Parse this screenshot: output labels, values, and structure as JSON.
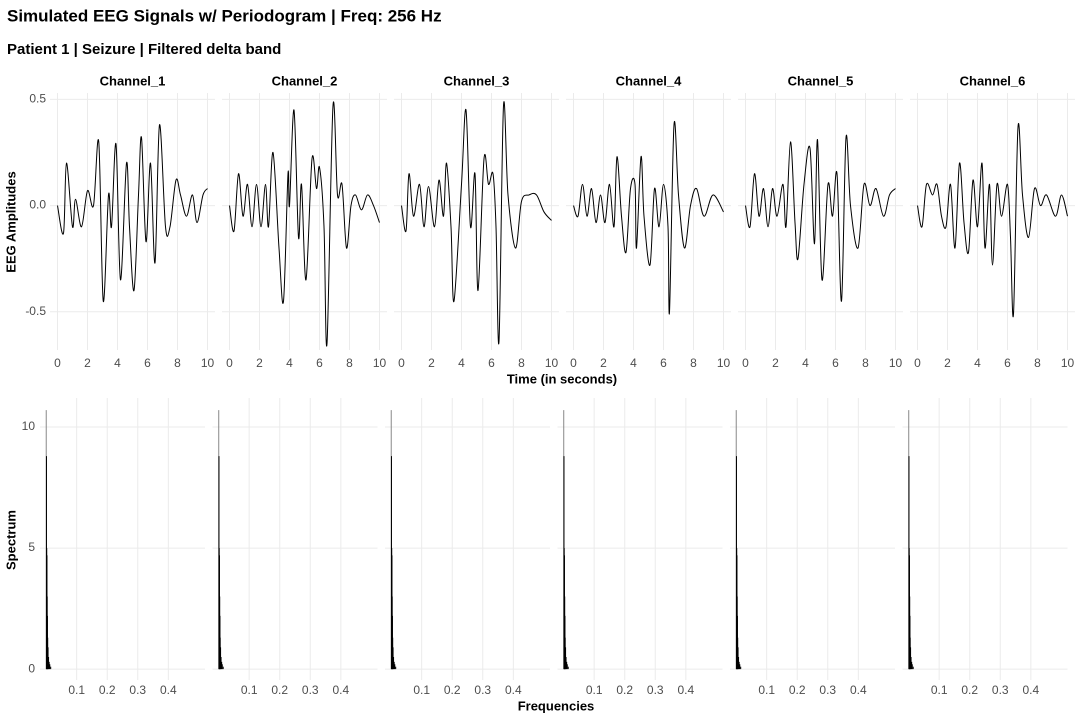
{
  "chart_data": [
    {
      "type": "line",
      "title": "Simulated EEG Signals w/ Periodogram | Freq: 256 Hz",
      "subtitle": "Patient 1 | Seizure | Filtered delta band",
      "x_label": "Time (in seconds)",
      "y_label": "EEG Amplitudes",
      "xlim": [
        -0.5,
        10.5
      ],
      "xticks": [
        0,
        2,
        4,
        6,
        8,
        10
      ],
      "ylim": [
        -0.68,
        0.53
      ],
      "yticks": [
        -0.5,
        {
          "value": 0,
          "label": "0.0"
        },
        0.5
      ],
      "grid": true,
      "color": "#000000",
      "panels": [
        {
          "name": "Channel_1",
          "x": [
            0,
            0.4,
            0.6,
            1.0,
            1.2,
            1.6,
            2.0,
            2.4,
            2.75,
            3.05,
            3.4,
            3.6,
            3.9,
            4.2,
            4.6,
            4.8,
            5.1,
            5.4,
            5.6,
            5.9,
            6.2,
            6.5,
            6.8,
            7.2,
            7.5,
            7.9,
            8.2,
            8.6,
            9.0,
            9.3,
            9.7,
            10
          ],
          "values": [
            0,
            -0.13,
            0.2,
            -0.1,
            0.03,
            -0.1,
            0.07,
            0,
            0.3,
            -0.45,
            0.05,
            -0.1,
            0.29,
            -0.35,
            0.2,
            -0.1,
            -0.4,
            0.05,
            0.32,
            -0.17,
            0.2,
            -0.27,
            0.38,
            -0.1,
            -0.1,
            0.12,
            0.05,
            -0.05,
            0.05,
            -0.08,
            0.05,
            0.08
          ]
        },
        {
          "name": "Channel_2",
          "x": [
            0,
            0.3,
            0.6,
            0.9,
            1.2,
            1.5,
            1.8,
            2.1,
            2.4,
            2.6,
            2.9,
            3.3,
            3.6,
            3.9,
            4.0,
            4.3,
            4.6,
            4.8,
            5.1,
            5.5,
            5.8,
            6.0,
            6.3,
            6.5,
            6.9,
            7.2,
            7.5,
            7.8,
            8.1,
            8.4,
            8.8,
            9.2,
            9.6,
            10
          ],
          "values": [
            0,
            -0.12,
            0.15,
            -0.05,
            0.1,
            -0.1,
            0.1,
            -0.1,
            0.1,
            -0.1,
            0.25,
            -0.2,
            -0.45,
            0.15,
            0,
            0.45,
            -0.15,
            0.1,
            -0.35,
            0.22,
            0.08,
            0.18,
            -0.1,
            -0.65,
            0.47,
            0.05,
            0.1,
            -0.2,
            0,
            0.05,
            -0.02,
            0.05,
            0,
            -0.08
          ]
        },
        {
          "name": "Channel_3",
          "x": [
            0,
            0.3,
            0.5,
            0.8,
            1.2,
            1.5,
            1.8,
            2.2,
            2.5,
            2.8,
            3.0,
            3.3,
            3.5,
            4.0,
            4.3,
            4.6,
            4.9,
            5.1,
            5.5,
            5.8,
            6.1,
            6.3,
            6.5,
            6.8,
            7.1,
            7.6,
            8.0,
            8.5,
            9.0,
            9.5,
            10
          ],
          "values": [
            0,
            -0.12,
            0.15,
            -0.05,
            0.1,
            -0.1,
            0.09,
            -0.1,
            0.12,
            -0.05,
            0.2,
            -0.1,
            -0.45,
            0.1,
            0.45,
            -0.1,
            0.15,
            -0.4,
            0.22,
            0.1,
            0.15,
            -0.1,
            -0.64,
            0.47,
            0.05,
            -0.2,
            0.02,
            0.05,
            0.05,
            -0.03,
            -0.07
          ]
        },
        {
          "name": "Channel_4",
          "x": [
            0,
            0.3,
            0.6,
            0.9,
            1.2,
            1.5,
            1.8,
            2.1,
            2.4,
            2.7,
            2.9,
            3.2,
            3.5,
            3.8,
            4.1,
            4.2,
            4.5,
            4.7,
            5.1,
            5.4,
            5.7,
            6.0,
            6.3,
            6.4,
            6.7,
            7.0,
            7.4,
            7.8,
            8.2,
            8.7,
            9.3,
            10
          ],
          "values": [
            0,
            -0.05,
            0.1,
            -0.05,
            0.08,
            -0.08,
            0.05,
            -0.08,
            0.1,
            -0.1,
            0.23,
            -0.05,
            -0.22,
            0.08,
            0.1,
            -0.2,
            0.23,
            -0.05,
            -0.28,
            0.08,
            -0.1,
            0.1,
            -0.1,
            -0.5,
            0.38,
            0.05,
            -0.2,
            0,
            0.08,
            -0.05,
            0.05,
            -0.03
          ]
        },
        {
          "name": "Channel_5",
          "x": [
            0,
            0.3,
            0.6,
            0.9,
            1.2,
            1.5,
            1.8,
            2.1,
            2.5,
            2.7,
            3.0,
            3.3,
            3.5,
            3.9,
            4.3,
            4.6,
            4.8,
            5.1,
            5.5,
            5.8,
            6.1,
            6.4,
            6.7,
            7.0,
            7.5,
            7.9,
            8.3,
            8.7,
            9.2,
            9.6,
            10
          ],
          "values": [
            0,
            -0.1,
            0.15,
            -0.05,
            0.08,
            -0.1,
            0.08,
            -0.05,
            0.1,
            -0.1,
            0.3,
            -0.08,
            -0.25,
            0.1,
            0.27,
            -0.18,
            0.31,
            -0.35,
            0.1,
            -0.05,
            0.15,
            -0.45,
            0.32,
            0,
            -0.2,
            0.1,
            0,
            0.08,
            -0.05,
            0.05,
            0.08
          ]
        },
        {
          "name": "Channel_6",
          "x": [
            0,
            0.3,
            0.6,
            1.0,
            1.3,
            1.6,
            1.9,
            2.2,
            2.5,
            2.8,
            3.1,
            3.4,
            3.7,
            4.0,
            4.3,
            4.5,
            4.8,
            5.0,
            5.3,
            5.6,
            6.0,
            6.2,
            6.4,
            6.7,
            7.0,
            7.4,
            7.8,
            8.2,
            8.6,
            9.2,
            9.6,
            10
          ],
          "values": [
            0,
            -0.1,
            0.1,
            0.05,
            0.1,
            -0.05,
            -0.1,
            0.1,
            -0.2,
            0.2,
            -0.08,
            -0.22,
            0.12,
            -0.1,
            0.2,
            -0.2,
            0.1,
            -0.28,
            0.1,
            -0.05,
            0.1,
            -0.15,
            -0.51,
            0.37,
            0.05,
            -0.15,
            0.08,
            0,
            0.05,
            -0.05,
            0.05,
            -0.05
          ]
        }
      ]
    },
    {
      "type": "spectrum",
      "x_label": "Frequencies",
      "y_label": "Spectrum",
      "xlim": [
        -0.02,
        0.52
      ],
      "xticks": [
        0.1,
        0.2,
        0.3,
        0.4
      ],
      "ylim": [
        -0.45,
        11.2
      ],
      "yticks": [
        0,
        5,
        10
      ],
      "grid": true,
      "color": "#000000",
      "panels": [
        {
          "x": [
            0.0004,
            0.0012,
            0.002,
            0.0028,
            0.0036,
            0.0044,
            0.0052,
            0.0064,
            0.008,
            0.01,
            0.012,
            0.015
          ],
          "values": [
            10.7,
            8.8,
            5.0,
            4.7,
            3.0,
            2.2,
            1.3,
            0.9,
            0.5,
            0.3,
            0.2,
            0.1
          ]
        },
        {
          "x": [
            0.0004,
            0.0012,
            0.002,
            0.0028,
            0.0036,
            0.0044,
            0.0052,
            0.0064,
            0.008,
            0.01,
            0.012,
            0.015
          ],
          "values": [
            10.7,
            8.8,
            5.0,
            4.7,
            3.0,
            2.2,
            1.3,
            0.9,
            0.5,
            0.3,
            0.2,
            0.1
          ]
        },
        {
          "x": [
            0.0004,
            0.0012,
            0.002,
            0.0028,
            0.0036,
            0.0044,
            0.0052,
            0.0064,
            0.008,
            0.01,
            0.012,
            0.015
          ],
          "values": [
            10.7,
            8.8,
            5.0,
            4.7,
            3.0,
            2.2,
            1.3,
            0.9,
            0.5,
            0.3,
            0.2,
            0.1
          ]
        },
        {
          "x": [
            0.0004,
            0.0012,
            0.002,
            0.0028,
            0.0036,
            0.0044,
            0.0052,
            0.0064,
            0.008,
            0.01,
            0.012,
            0.015
          ],
          "values": [
            10.7,
            8.8,
            5.0,
            4.7,
            3.0,
            2.2,
            1.3,
            0.9,
            0.5,
            0.3,
            0.2,
            0.1
          ]
        },
        {
          "x": [
            0.0004,
            0.0012,
            0.002,
            0.0028,
            0.0036,
            0.0044,
            0.0052,
            0.0064,
            0.008,
            0.01,
            0.012,
            0.015
          ],
          "values": [
            10.7,
            8.8,
            5.0,
            4.7,
            3.0,
            2.2,
            1.3,
            0.9,
            0.5,
            0.3,
            0.2,
            0.1
          ]
        },
        {
          "x": [
            0.0004,
            0.0012,
            0.002,
            0.0028,
            0.0036,
            0.0044,
            0.0052,
            0.0064,
            0.008,
            0.01,
            0.012,
            0.015
          ],
          "values": [
            10.7,
            8.8,
            5.0,
            4.7,
            3.0,
            2.2,
            1.3,
            0.9,
            0.5,
            0.3,
            0.2,
            0.1
          ]
        }
      ]
    }
  ]
}
